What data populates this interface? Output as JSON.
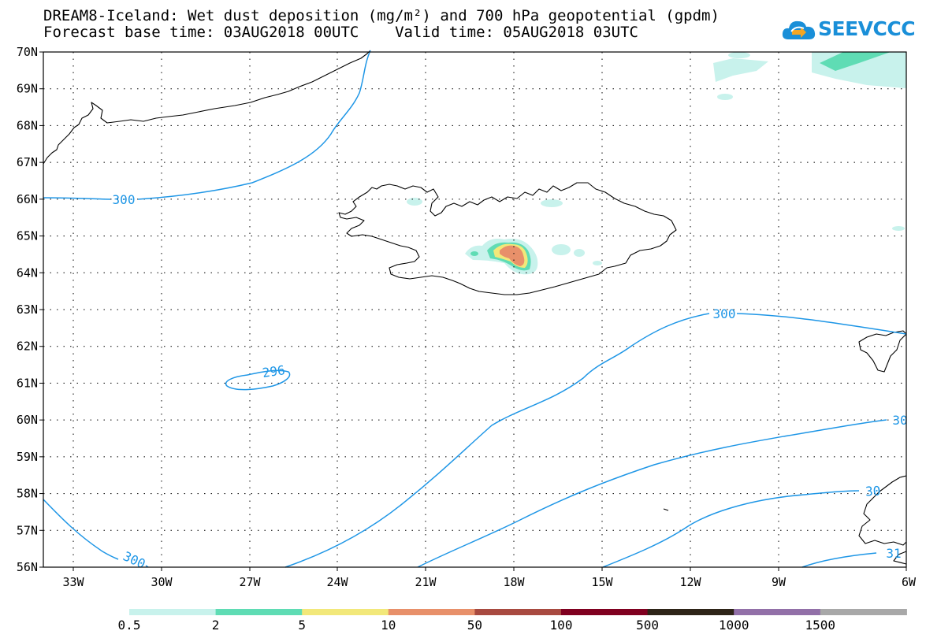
{
  "title": {
    "line1": "DREAM8-Iceland: Wet dust deposition (mg/m²) and 700 hPa geopotential (gpdm)",
    "line2": "Forecast base time: 03AUG2018 00UTC    Valid time: 05AUG2018 03UTC"
  },
  "logo": {
    "text": "SEEVCCC",
    "icon": "cloud-icon"
  },
  "axes": {
    "lat_labels": [
      "70N",
      "69N",
      "68N",
      "67N",
      "66N",
      "65N",
      "64N",
      "63N",
      "62N",
      "61N",
      "60N",
      "59N",
      "58N",
      "57N",
      "56N"
    ],
    "lon_labels": [
      "33W",
      "30W",
      "27W",
      "24W",
      "21W",
      "18W",
      "15W",
      "12W",
      "9W",
      "6W"
    ]
  },
  "contours": {
    "labels": [
      "300",
      "300",
      "296",
      "300",
      "30",
      "30",
      "31"
    ]
  },
  "colorbar": {
    "labels": [
      "0.5",
      "2",
      "5",
      "10",
      "50",
      "100",
      "500",
      "1000",
      "1500"
    ],
    "colors": [
      "#c8f2ec",
      "#5fdcb4",
      "#f2e87a",
      "#e8906a",
      "#a84a40",
      "#800020",
      "#2e2418",
      "#9270a8",
      "#a8a8a8"
    ]
  },
  "colors": {
    "contour": "#1e96e6",
    "coast": "#000000",
    "grid": "#000000"
  }
}
